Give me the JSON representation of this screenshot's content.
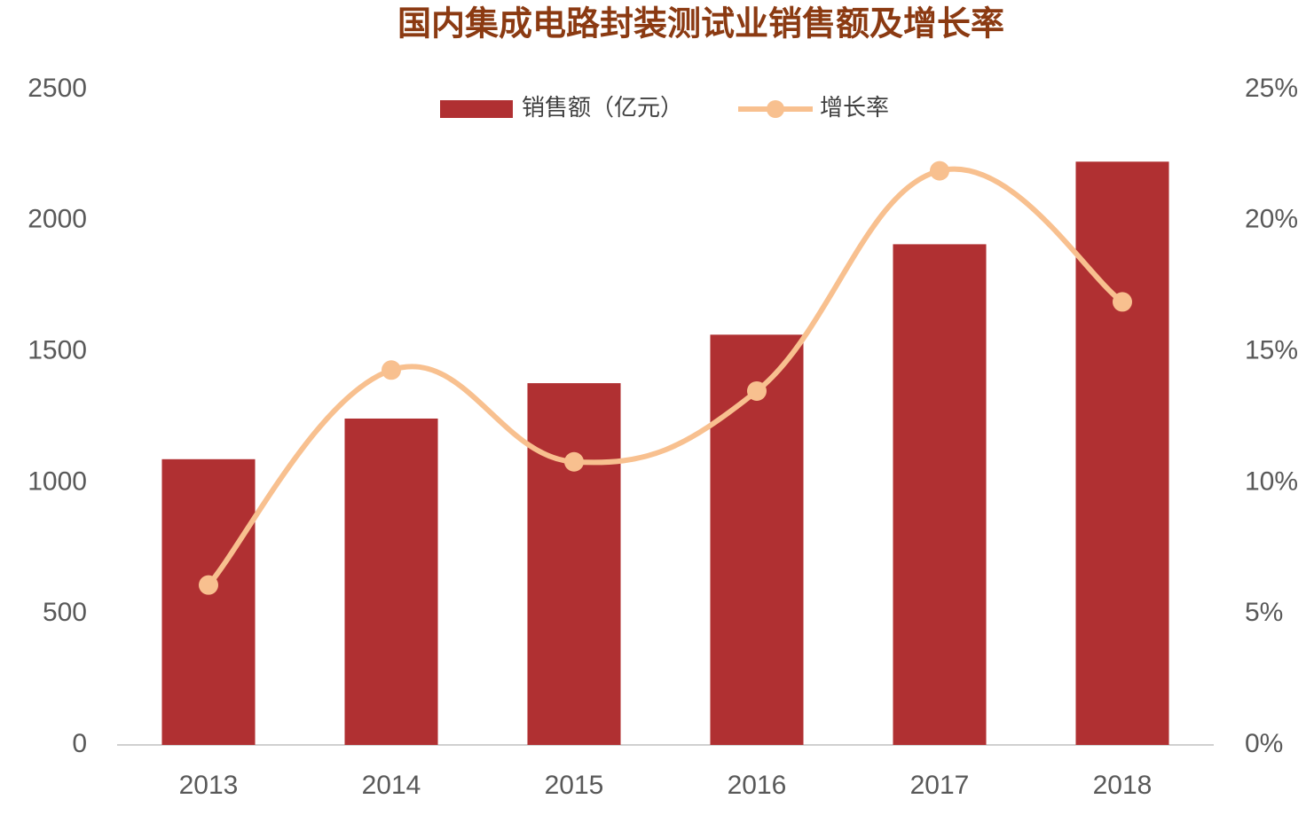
{
  "chart_data": {
    "type": "bar",
    "title": "国内集成电路封装测试业销售额及增长率",
    "categories": [
      "2013",
      "2014",
      "2015",
      "2016",
      "2017",
      "2018"
    ],
    "series": [
      {
        "name": "销售额（亿元）",
        "type": "bar",
        "color": "#b03032",
        "values": [
          1090,
          1245,
          1380,
          1565,
          1910,
          2225
        ]
      },
      {
        "name": "增长率",
        "type": "line",
        "axis": "y2",
        "color": "#f8c08f",
        "values": [
          6.1,
          14.3,
          10.8,
          13.5,
          21.9,
          16.9
        ]
      }
    ],
    "ylim": [
      0,
      2500
    ],
    "yticks": [
      0,
      500,
      1000,
      1500,
      2000,
      2500
    ],
    "y2lim": [
      0,
      25
    ],
    "y2ticks": [
      {
        "value": 0,
        "label": "0%"
      },
      {
        "value": 5,
        "label": "5%"
      },
      {
        "value": 10,
        "label": "10%"
      },
      {
        "value": 15,
        "label": "15%"
      },
      {
        "value": 20,
        "label": "20%"
      },
      {
        "value": 25,
        "label": "25%"
      }
    ],
    "grid": false,
    "legend": "top"
  }
}
